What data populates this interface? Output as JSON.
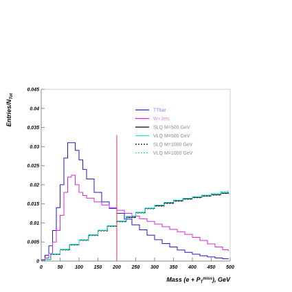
{
  "chart_data": {
    "type": "line",
    "title": "",
    "xlabel": "Mass (e + P",
    "xlabel_sub": "T",
    "xlabel_sup": "miss",
    "xlabel_tail": "), GeV",
    "ylabel": "Entries/N",
    "ylabel_sub": "Tot",
    "xlim": [
      0,
      500
    ],
    "ylim": [
      0,
      0.045
    ],
    "x_ticks": [
      {
        "value": 0,
        "label": "0"
      },
      {
        "value": 50,
        "label": "50"
      },
      {
        "value": 100,
        "label": "100"
      },
      {
        "value": 150,
        "label": "150"
      },
      {
        "value": 200,
        "label": "200"
      },
      {
        "value": 250,
        "label": "250"
      },
      {
        "value": 300,
        "label": "300"
      },
      {
        "value": 350,
        "label": "350"
      },
      {
        "value": 400,
        "label": "400"
      },
      {
        "value": 450,
        "label": "450"
      },
      {
        "value": 500,
        "label": "500"
      }
    ],
    "y_ticks": [
      {
        "value": 0,
        "label": "0"
      },
      {
        "value": 0.005,
        "label": "0.005"
      },
      {
        "value": 0.01,
        "label": "0.01"
      },
      {
        "value": 0.015,
        "label": "0.015"
      },
      {
        "value": 0.02,
        "label": "0.02"
      },
      {
        "value": 0.025,
        "label": "0.025"
      },
      {
        "value": 0.03,
        "label": "0.03"
      },
      {
        "value": 0.035,
        "label": "0.035"
      },
      {
        "value": 0.04,
        "label": "0.04"
      },
      {
        "value": 0.045,
        "label": "0.045"
      }
    ],
    "cut_line": {
      "x": 200,
      "y_top": 0.033,
      "color": "#ee3333"
    },
    "legend_position": "top-right",
    "series": [
      {
        "name": "TTbar",
        "color": "#1a1acc",
        "dash": "",
        "label_color": "#8888ee",
        "x": [
          0,
          10,
          20,
          30,
          40,
          50,
          60,
          70,
          80,
          90,
          100,
          110,
          120,
          140,
          160,
          180,
          200,
          220,
          240,
          260,
          280,
          300,
          320,
          340,
          360,
          380,
          400,
          420,
          440,
          460,
          480,
          495
        ],
        "y": [
          0.0003,
          0.0015,
          0.004,
          0.008,
          0.014,
          0.02,
          0.027,
          0.031,
          0.031,
          0.029,
          0.0265,
          0.024,
          0.0215,
          0.018,
          0.0155,
          0.0138,
          0.0125,
          0.011,
          0.0095,
          0.0082,
          0.0068,
          0.0056,
          0.0046,
          0.0037,
          0.0029,
          0.0023,
          0.0018,
          0.0014,
          0.0011,
          0.0008,
          0.0006,
          0.0005
        ]
      },
      {
        "name": "W+Jets",
        "color": "#dd22dd",
        "dash": "",
        "label_color": "#dd88dd",
        "x": [
          0,
          10,
          20,
          30,
          40,
          50,
          60,
          70,
          80,
          90,
          100,
          110,
          120,
          140,
          160,
          180,
          200,
          220,
          240,
          260,
          280,
          300,
          320,
          340,
          360,
          380,
          400,
          420,
          440,
          460,
          480,
          495
        ],
        "y": [
          0.0002,
          0.0008,
          0.002,
          0.005,
          0.008,
          0.012,
          0.018,
          0.022,
          0.0225,
          0.02,
          0.018,
          0.0172,
          0.0165,
          0.0155,
          0.0147,
          0.014,
          0.0133,
          0.0125,
          0.0118,
          0.0111,
          0.0104,
          0.0097,
          0.009,
          0.0083,
          0.0077,
          0.007,
          0.0062,
          0.0054,
          0.0045,
          0.0037,
          0.003,
          0.0026
        ]
      },
      {
        "name": "SLQ M=500 GeV",
        "color": "#000000",
        "dash": "",
        "label_color": "#888888",
        "x": [
          0,
          25,
          50,
          75,
          100,
          125,
          150,
          175,
          200,
          225,
          250,
          275,
          300,
          325,
          350,
          375,
          400,
          425,
          450,
          475,
          495
        ],
        "y": [
          0.0004,
          0.0018,
          0.003,
          0.0043,
          0.0055,
          0.0068,
          0.008,
          0.0092,
          0.0104,
          0.0115,
          0.0127,
          0.0138,
          0.0145,
          0.0152,
          0.0158,
          0.0163,
          0.0167,
          0.0171,
          0.0174,
          0.0178,
          0.018
        ]
      },
      {
        "name": "VLQ M=500 GeV",
        "color": "#22dddd",
        "dash": "",
        "label_color": "#888888",
        "x": [
          0,
          25,
          50,
          75,
          100,
          125,
          150,
          175,
          200,
          225,
          250,
          275,
          300,
          325,
          350,
          375,
          400,
          425,
          450,
          475,
          495
        ],
        "y": [
          0.0004,
          0.0019,
          0.0031,
          0.0044,
          0.0056,
          0.0069,
          0.0081,
          0.0093,
          0.0105,
          0.0117,
          0.0128,
          0.0139,
          0.0147,
          0.0154,
          0.016,
          0.0165,
          0.0169,
          0.0173,
          0.0177,
          0.0182,
          0.0185
        ]
      },
      {
        "name": "SLQ M=1000 GeV",
        "color": "#000000",
        "dash": "2,2",
        "label_color": "#888888",
        "x": [
          0,
          25,
          50,
          75,
          100,
          125,
          150,
          175,
          200,
          225,
          250,
          275,
          300,
          325,
          350,
          375,
          400,
          425,
          450,
          475,
          495
        ],
        "y": [
          0.0004,
          0.0017,
          0.0029,
          0.0042,
          0.0054,
          0.0067,
          0.0079,
          0.0091,
          0.0103,
          0.0114,
          0.0126,
          0.0137,
          0.0144,
          0.0151,
          0.0157,
          0.0162,
          0.0166,
          0.017,
          0.0173,
          0.0177,
          0.0179
        ]
      },
      {
        "name": "VLQ M=1000 GeV",
        "color": "#22dddd",
        "dash": "2,2",
        "label_color": "#888888",
        "x": [
          0,
          25,
          50,
          75,
          100,
          125,
          150,
          175,
          200,
          225,
          250,
          275,
          300,
          325,
          350,
          375,
          400,
          425,
          450,
          475,
          495
        ],
        "y": [
          0.0004,
          0.0018,
          0.003,
          0.0043,
          0.0055,
          0.0068,
          0.008,
          0.0092,
          0.0104,
          0.0116,
          0.0127,
          0.0138,
          0.0146,
          0.0153,
          0.0159,
          0.0164,
          0.0168,
          0.0172,
          0.0176,
          0.018,
          0.0183
        ]
      }
    ]
  }
}
